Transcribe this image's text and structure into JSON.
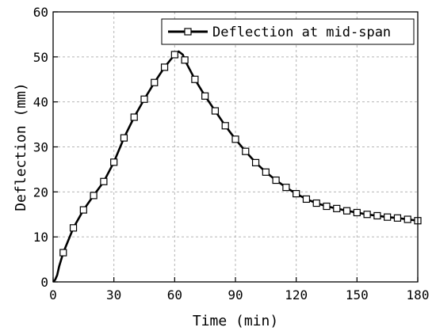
{
  "chart_data": {
    "type": "line",
    "xlabel": "Time (min)",
    "ylabel": "Deflection (mm)",
    "xlim": [
      0,
      180
    ],
    "ylim": [
      0,
      60
    ],
    "xticks": [
      0,
      30,
      60,
      90,
      120,
      150,
      180
    ],
    "yticks": [
      0,
      10,
      20,
      30,
      40,
      50,
      60
    ],
    "grid": true,
    "legend_position": "top-right",
    "series": [
      {
        "name": "Deflection at mid-span",
        "color": "#000000",
        "marker": "open-square",
        "line": [
          [
            0,
            0
          ],
          [
            1,
            0.5
          ],
          [
            2,
            1.5
          ],
          [
            3,
            3.5
          ],
          [
            5,
            6.5
          ],
          [
            10,
            12
          ],
          [
            15,
            16
          ],
          [
            20,
            19.2
          ],
          [
            25,
            22.3
          ],
          [
            30,
            26.6
          ],
          [
            35,
            32
          ],
          [
            40,
            36.6
          ],
          [
            45,
            40.6
          ],
          [
            50,
            44.3
          ],
          [
            55,
            47.7
          ],
          [
            60,
            50.5
          ],
          [
            62,
            51.2
          ],
          [
            64,
            50.5
          ],
          [
            65,
            49.3
          ],
          [
            70,
            45
          ],
          [
            75,
            41.3
          ],
          [
            80,
            38
          ],
          [
            85,
            34.7
          ],
          [
            90,
            31.7
          ],
          [
            95,
            29
          ],
          [
            100,
            26.5
          ],
          [
            105,
            24.4
          ],
          [
            110,
            22.6
          ],
          [
            115,
            21
          ],
          [
            120,
            19.6
          ],
          [
            125,
            18.4
          ],
          [
            130,
            17.5
          ],
          [
            135,
            16.8
          ],
          [
            140,
            16.3
          ],
          [
            145,
            15.8
          ],
          [
            150,
            15.4
          ],
          [
            155,
            15.0
          ],
          [
            160,
            14.7
          ],
          [
            165,
            14.4
          ],
          [
            170,
            14.2
          ],
          [
            175,
            13.9
          ],
          [
            180,
            13.6
          ]
        ],
        "points": [
          [
            5,
            6.5
          ],
          [
            10,
            12
          ],
          [
            15,
            16
          ],
          [
            20,
            19.2
          ],
          [
            25,
            22.3
          ],
          [
            30,
            26.6
          ],
          [
            35,
            32
          ],
          [
            40,
            36.6
          ],
          [
            45,
            40.6
          ],
          [
            50,
            44.3
          ],
          [
            55,
            47.7
          ],
          [
            60,
            50.5
          ],
          [
            65,
            49.3
          ],
          [
            70,
            45
          ],
          [
            75,
            41.3
          ],
          [
            80,
            38
          ],
          [
            85,
            34.7
          ],
          [
            90,
            31.7
          ],
          [
            95,
            29
          ],
          [
            100,
            26.5
          ],
          [
            105,
            24.4
          ],
          [
            110,
            22.6
          ],
          [
            115,
            21
          ],
          [
            120,
            19.6
          ],
          [
            125,
            18.4
          ],
          [
            130,
            17.5
          ],
          [
            135,
            16.8
          ],
          [
            140,
            16.3
          ],
          [
            145,
            15.8
          ],
          [
            150,
            15.4
          ],
          [
            155,
            15.0
          ],
          [
            160,
            14.7
          ],
          [
            165,
            14.4
          ],
          [
            170,
            14.2
          ],
          [
            175,
            13.9
          ],
          [
            180,
            13.6
          ]
        ]
      }
    ]
  }
}
